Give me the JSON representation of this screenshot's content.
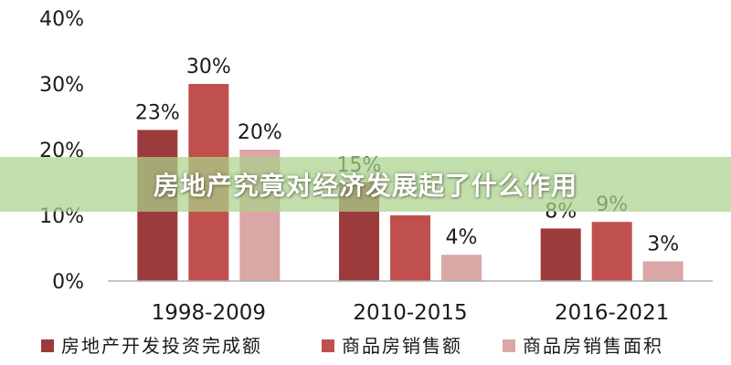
{
  "banner": {
    "title": "房地产究竟对经济发展起了什么作用"
  },
  "chart_data": {
    "type": "bar",
    "categories": [
      "1998-2009",
      "2010-2015",
      "2016-2021"
    ],
    "series": [
      {
        "name": "房地产开发投资完成额",
        "values": [
          23,
          15,
          8
        ],
        "labels": [
          "23%",
          "15%",
          "8%"
        ],
        "color": "#9c3b3b"
      },
      {
        "name": "商品房销售额",
        "values": [
          30,
          10,
          9
        ],
        "labels": [
          "30%",
          "",
          "9%"
        ],
        "color": "#c0504d"
      },
      {
        "name": "商品房销售面积",
        "values": [
          20,
          4,
          3
        ],
        "labels": [
          "20%",
          "4%",
          "3%"
        ],
        "color": "#dba6a6"
      }
    ],
    "ylim": [
      0,
      40
    ],
    "yticks": [
      0,
      10,
      20,
      30,
      40
    ],
    "ytick_labels": [
      "0%",
      "10%",
      "20%",
      "30%",
      "40%"
    ],
    "grid": false,
    "legend_position": "bottom"
  }
}
